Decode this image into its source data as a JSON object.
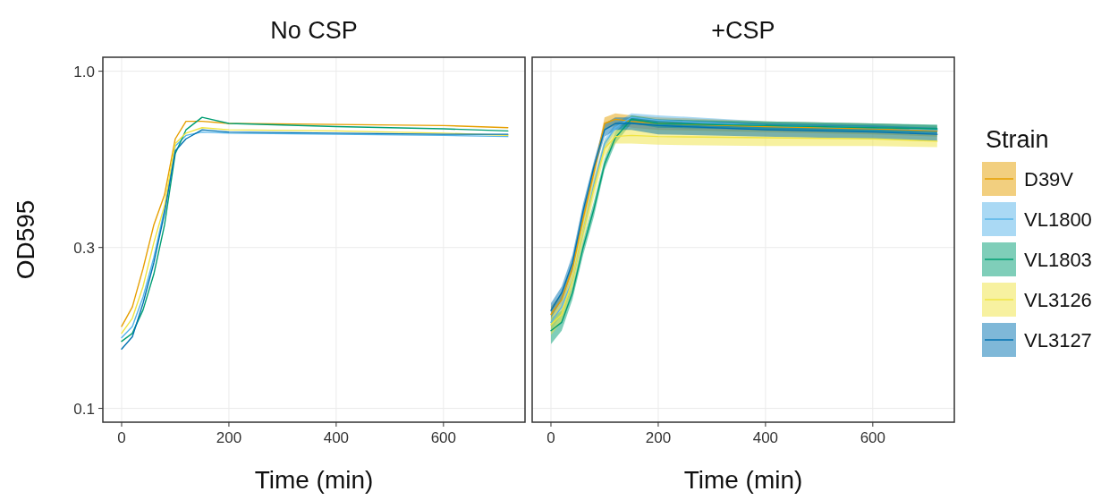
{
  "chart_data": [
    {
      "type": "line",
      "title": "No CSP",
      "xlabel": "Time (min)",
      "ylabel": "OD595",
      "log": "y",
      "grid": true,
      "legend": "right",
      "legend_title": "Strain",
      "x": [
        0,
        20,
        40,
        60,
        80,
        100,
        120,
        150,
        200,
        400,
        600,
        720
      ],
      "xlim": [
        -35,
        752
      ],
      "xticks": [
        0,
        200,
        400,
        600
      ],
      "ylim": [
        0.091,
        1.1
      ],
      "yticks": [
        {
          "value": 0.1,
          "label": "0.1"
        },
        {
          "value": 0.3,
          "label": "0.3"
        },
        {
          "value": 1,
          "label": "1.0"
        }
      ],
      "series": [
        {
          "name": "D39V",
          "color": "#e69f00",
          "values": [
            0.175,
            0.2,
            0.26,
            0.35,
            0.43,
            0.63,
            0.71,
            0.71,
            0.7,
            0.695,
            0.69,
            0.68
          ]
        },
        {
          "name": "VL1800",
          "color": "#56b4e9",
          "values": [
            0.162,
            0.175,
            0.214,
            0.28,
            0.39,
            0.6,
            0.645,
            0.66,
            0.655,
            0.65,
            0.645,
            0.64
          ]
        },
        {
          "name": "VL1803",
          "color": "#009e73",
          "values": [
            0.158,
            0.167,
            0.196,
            0.25,
            0.35,
            0.57,
            0.67,
            0.73,
            0.7,
            0.685,
            0.675,
            0.665
          ]
        },
        {
          "name": "VL3126",
          "color": "#f0e442",
          "values": [
            0.167,
            0.185,
            0.23,
            0.31,
            0.4,
            0.61,
            0.655,
            0.68,
            0.67,
            0.665,
            0.655,
            0.645
          ]
        },
        {
          "name": "VL3127",
          "color": "#0072b2",
          "values": [
            0.15,
            0.163,
            0.205,
            0.27,
            0.38,
            0.58,
            0.63,
            0.67,
            0.66,
            0.655,
            0.65,
            0.65
          ]
        }
      ]
    },
    {
      "type": "line",
      "title": "+CSP",
      "xlabel": "Time (min)",
      "log": "y",
      "grid": true,
      "tick_labels": "x",
      "x": [
        0,
        20,
        40,
        60,
        80,
        100,
        120,
        150,
        200,
        400,
        600,
        720
      ],
      "xlim": [
        -35,
        752
      ],
      "xticks": [
        0,
        200,
        400,
        600
      ],
      "ylim": [
        0.091,
        1.1
      ],
      "yticks": [
        0.1,
        0.3,
        1
      ],
      "series": [
        {
          "color": "#e69f00",
          "values": [
            0.19,
            0.21,
            0.26,
            0.365,
            0.5,
            0.7,
            0.72,
            0.71,
            0.7,
            0.685,
            0.675,
            0.665
          ],
          "lower": [
            0.18,
            0.2,
            0.25,
            0.35,
            0.48,
            0.67,
            0.69,
            0.68,
            0.67,
            0.66,
            0.65,
            0.64
          ],
          "upper": [
            0.2,
            0.22,
            0.27,
            0.38,
            0.52,
            0.73,
            0.75,
            0.74,
            0.73,
            0.71,
            0.7,
            0.69
          ]
        },
        {
          "color": "#56b4e9",
          "values": [
            0.18,
            0.2,
            0.24,
            0.335,
            0.46,
            0.61,
            0.68,
            0.73,
            0.715,
            0.69,
            0.68,
            0.67
          ],
          "lower": [
            0.17,
            0.19,
            0.23,
            0.32,
            0.44,
            0.59,
            0.66,
            0.71,
            0.69,
            0.67,
            0.66,
            0.65
          ],
          "upper": [
            0.19,
            0.21,
            0.25,
            0.35,
            0.48,
            0.63,
            0.7,
            0.75,
            0.74,
            0.71,
            0.7,
            0.69
          ]
        },
        {
          "color": "#009e73",
          "values": [
            0.17,
            0.18,
            0.22,
            0.3,
            0.39,
            0.53,
            0.635,
            0.72,
            0.7,
            0.69,
            0.68,
            0.675
          ],
          "lower": [
            0.155,
            0.17,
            0.21,
            0.285,
            0.37,
            0.51,
            0.61,
            0.7,
            0.68,
            0.67,
            0.66,
            0.655
          ],
          "upper": [
            0.185,
            0.195,
            0.23,
            0.315,
            0.41,
            0.55,
            0.66,
            0.74,
            0.72,
            0.71,
            0.7,
            0.695
          ]
        },
        {
          "color": "#f0e442",
          "values": [
            0.177,
            0.19,
            0.24,
            0.335,
            0.45,
            0.59,
            0.64,
            0.645,
            0.64,
            0.635,
            0.63,
            0.62
          ],
          "lower": [
            0.165,
            0.18,
            0.225,
            0.31,
            0.42,
            0.56,
            0.61,
            0.61,
            0.605,
            0.6,
            0.6,
            0.595
          ],
          "upper": [
            0.19,
            0.205,
            0.255,
            0.36,
            0.48,
            0.62,
            0.67,
            0.68,
            0.675,
            0.67,
            0.66,
            0.65
          ]
        },
        {
          "color": "#0072b2",
          "values": [
            0.195,
            0.22,
            0.27,
            0.385,
            0.52,
            0.67,
            0.7,
            0.7,
            0.69,
            0.67,
            0.66,
            0.65
          ],
          "lower": [
            0.185,
            0.21,
            0.255,
            0.365,
            0.5,
            0.64,
            0.67,
            0.67,
            0.65,
            0.64,
            0.63,
            0.62
          ],
          "upper": [
            0.205,
            0.23,
            0.285,
            0.405,
            0.54,
            0.7,
            0.73,
            0.73,
            0.72,
            0.7,
            0.69,
            0.68
          ]
        }
      ]
    }
  ]
}
